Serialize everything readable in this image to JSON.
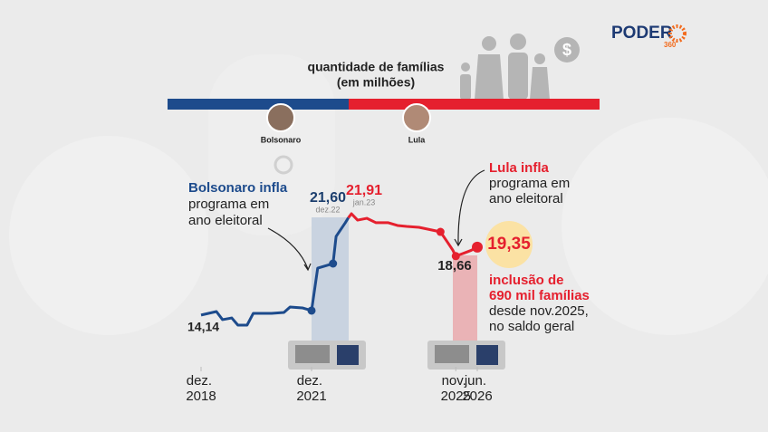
{
  "logo": {
    "name": "PODER",
    "number": "360"
  },
  "chart_data": {
    "type": "line",
    "title": "quantidade de famílias",
    "subtitle": "(em milhões)",
    "leaders": [
      "Bolsonaro",
      "Lula"
    ],
    "x": [
      "2018-12",
      "2019-05",
      "2019-07",
      "2019-10",
      "2019-12",
      "2020-03",
      "2020-05",
      "2020-11",
      "2021-03",
      "2021-05",
      "2021-09",
      "2021-12",
      "2022-02",
      "2022-07",
      "2022-08",
      "2022-11",
      "2022-12",
      "2023-01",
      "2023-03",
      "2023-06",
      "2023-09",
      "2024-01",
      "2024-04",
      "2024-07",
      "2024-11",
      "2025-06",
      "2025-08",
      "2025-10",
      "2025-11",
      "2026-02",
      "2026-04",
      "2026-06"
    ],
    "xlim": [
      "2018-12",
      "2026-06"
    ],
    "xticks": [
      {
        "value": "2018-12",
        "label": "dez. 2018"
      },
      {
        "value": "2021-12",
        "label": "dez. 2021"
      },
      {
        "value": "2025-11",
        "label": "nov. 2025"
      },
      {
        "value": "2026-06",
        "label": "jun. 2026"
      }
    ],
    "ylim": [
      10,
      23
    ],
    "series": [
      {
        "name": "Bolsonaro",
        "color": "#1d4b8c",
        "values": [
          14.14,
          14.41,
          13.79,
          13.92,
          13.37,
          13.37,
          14.27,
          14.27,
          14.34,
          14.76,
          14.69,
          14.48,
          17.74,
          18.09,
          20.17,
          21.22,
          21.6,
          null,
          null,
          null,
          null,
          null,
          null,
          null,
          null,
          null,
          null,
          null,
          null,
          null,
          null,
          null
        ],
        "value_labels": [
          "14,14",
          null,
          null,
          null,
          null,
          null,
          null,
          null,
          null,
          null,
          null,
          null,
          null,
          null,
          null,
          null,
          "21,60",
          null,
          null,
          null,
          null,
          null,
          null,
          null,
          null,
          null,
          null,
          null,
          null,
          null,
          null,
          null
        ],
        "notes": [
          null,
          null,
          null,
          null,
          null,
          null,
          null,
          null,
          null,
          null,
          null,
          null,
          null,
          null,
          null,
          null,
          "dez.22",
          null,
          null,
          null,
          null,
          null,
          null,
          null,
          null,
          null,
          null,
          null,
          null,
          null,
          null,
          null
        ]
      },
      {
        "name": "Lula",
        "color": "#e5202e",
        "values": [
          null,
          null,
          null,
          null,
          null,
          null,
          null,
          null,
          null,
          null,
          null,
          null,
          null,
          null,
          null,
          null,
          21.6,
          21.91,
          21.42,
          21.56,
          21.22,
          21.22,
          21.01,
          20.94,
          20.87,
          20.52,
          19.83,
          19.13,
          18.66,
          18.92,
          19.1,
          19.35
        ],
        "value_labels": [
          null,
          null,
          null,
          null,
          null,
          null,
          null,
          null,
          null,
          null,
          null,
          null,
          null,
          null,
          null,
          null,
          null,
          "21,91",
          null,
          null,
          null,
          null,
          null,
          null,
          null,
          null,
          null,
          null,
          "18,66",
          null,
          null,
          "19,35"
        ],
        "notes": [
          null,
          null,
          null,
          null,
          null,
          null,
          null,
          null,
          null,
          null,
          null,
          null,
          null,
          null,
          null,
          null,
          null,
          "jan.23",
          null,
          null,
          null,
          null,
          null,
          null,
          null,
          null,
          null,
          null,
          null,
          null,
          null,
          null
        ]
      }
    ],
    "annotations": {
      "bolsonaro": {
        "title": "Bolsonaro infla",
        "lines": [
          "programa em",
          "ano eleitoral"
        ]
      },
      "lula": {
        "title": "Lula infla",
        "lines": [
          "programa em",
          "ano eleitoral"
        ]
      },
      "inclusion": {
        "title": [
          "inclusão de",
          "690 mil famílias"
        ],
        "lines": [
          "desde nov.2025,",
          "no saldo geral"
        ]
      }
    }
  }
}
